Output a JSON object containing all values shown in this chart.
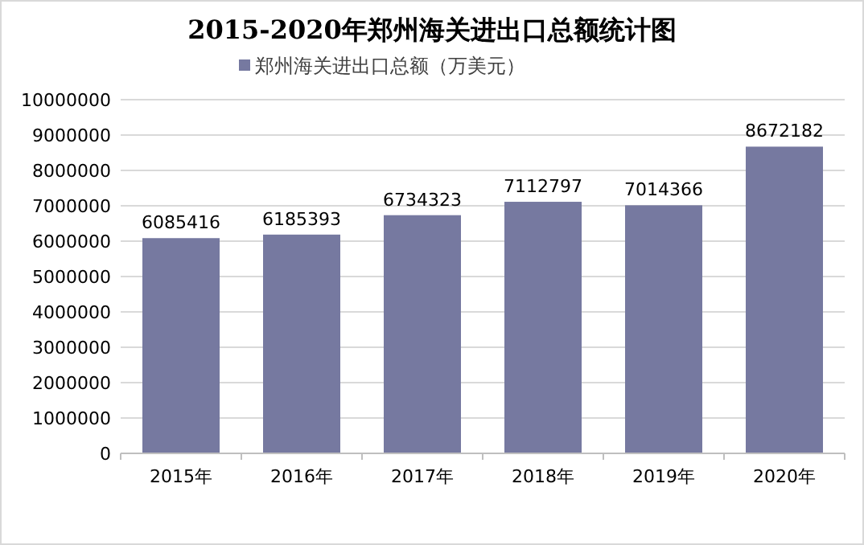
{
  "chart_data": {
    "type": "bar",
    "title": "2015-2020年郑州海关进出口总额统计图",
    "categories": [
      "2015年",
      "2016年",
      "2017年",
      "2018年",
      "2019年",
      "2020年"
    ],
    "series": [
      {
        "name": "郑州海关进出口总额（万美元）",
        "color": "#7679a0",
        "values": [
          6085416,
          6185393,
          6734323,
          7112797,
          7014366,
          8672182
        ]
      }
    ],
    "ylim": [
      0,
      10000000
    ],
    "yticks": [
      0,
      1000000,
      2000000,
      3000000,
      4000000,
      5000000,
      6000000,
      7000000,
      8000000,
      9000000,
      10000000
    ],
    "grid": "y",
    "legend": "top",
    "data_labels": true
  }
}
